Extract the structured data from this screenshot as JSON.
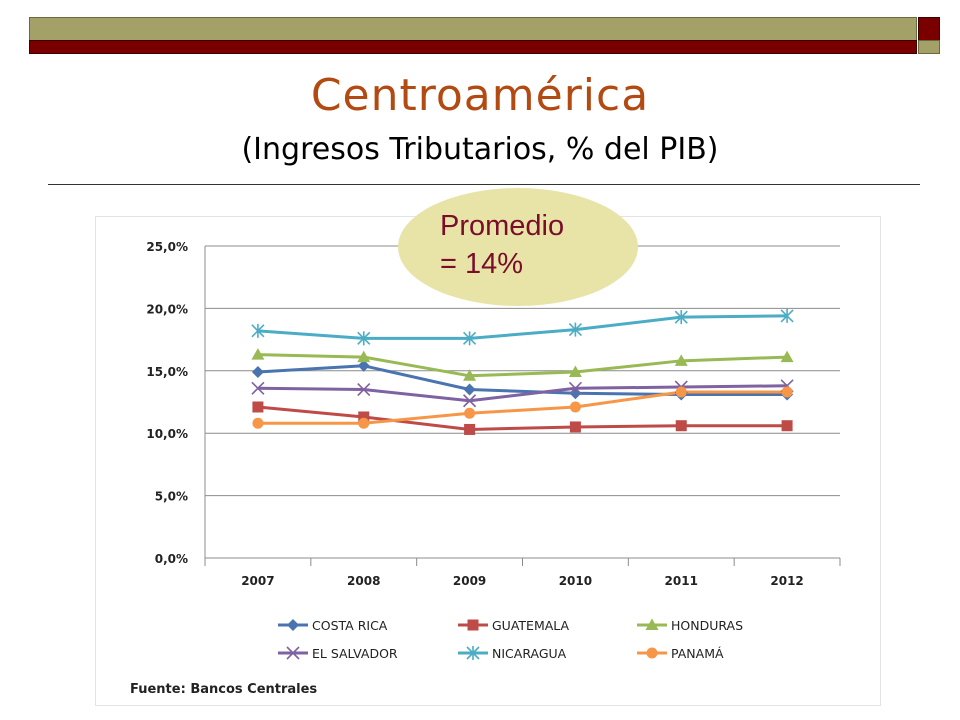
{
  "slide": {
    "title": "Centroamérica",
    "subtitle": "(Ingresos Tributarios, % del PIB)",
    "callout": "Promedio\n= 14%",
    "source": "Fuente: Bancos Centrales"
  },
  "colors": {
    "title": "#b24a12",
    "bar_olive": "#a3a167",
    "bar_red": "#7a0000",
    "callout_fill": "#e8e4a8",
    "callout_text": "#7a0d2a"
  },
  "chart_data": {
    "type": "line",
    "categories": [
      "2007",
      "2008",
      "2009",
      "2010",
      "2011",
      "2012"
    ],
    "ylim": [
      0,
      25
    ],
    "yticks": [
      "0,0%",
      "5,0%",
      "10,0%",
      "15,0%",
      "20,0%",
      "25,0%"
    ],
    "grid": true,
    "legend_position": "bottom",
    "series": [
      {
        "name": "COSTA RICA",
        "color": "#4a74b0",
        "marker": "diamond",
        "values": [
          14.9,
          15.4,
          13.5,
          13.2,
          13.1,
          13.1
        ]
      },
      {
        "name": "GUATEMALA",
        "color": "#be4b48",
        "marker": "square",
        "values": [
          12.1,
          11.3,
          10.3,
          10.5,
          10.6,
          10.6
        ]
      },
      {
        "name": "HONDURAS",
        "color": "#98b954",
        "marker": "triangle",
        "values": [
          16.3,
          16.1,
          14.6,
          14.9,
          15.8,
          16.1
        ]
      },
      {
        "name": "EL SALVADOR",
        "color": "#7e62a1",
        "marker": "x",
        "values": [
          13.6,
          13.5,
          12.6,
          13.6,
          13.7,
          13.8
        ]
      },
      {
        "name": "NICARAGUA",
        "color": "#4bacc6",
        "marker": "star",
        "values": [
          18.2,
          17.6,
          17.6,
          18.3,
          19.3,
          19.4
        ]
      },
      {
        "name": "PANAMÁ",
        "color": "#f79646",
        "marker": "circle",
        "values": [
          10.8,
          10.8,
          11.6,
          12.1,
          13.3,
          13.3
        ]
      }
    ]
  }
}
